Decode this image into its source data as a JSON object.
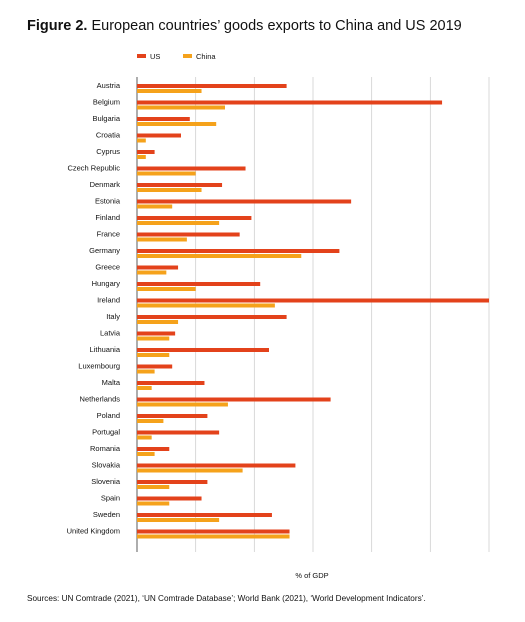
{
  "figure": {
    "label": "Figure 2.",
    "title": "European countries’ goods exports to China and US 2019",
    "source": "Sources: UN Comtrade (2021), ‘UN Comtrade Database’; World Bank (2021), ‘World Development Indicators’."
  },
  "chart_data": {
    "type": "bar",
    "orientation": "horizontal",
    "xlabel": "% of GDP",
    "xlim": [
      0,
      12
    ],
    "grid": true,
    "tick_labels_shown": false,
    "legend_position": "top-left",
    "categories": [
      "Austria",
      "Belgium",
      "Bulgaria",
      "Croatia",
      "Cyprus",
      "Czech Republic",
      "Denmark",
      "Estonia",
      "Finland",
      "France",
      "Germany",
      "Greece",
      "Hungary",
      "Ireland",
      "Italy",
      "Latvia",
      "Lithuania",
      "Luxembourg",
      "Malta",
      "Netherlands",
      "Poland",
      "Portugal",
      "Romania",
      "Slovakia",
      "Slovenia",
      "Spain",
      "Sweden",
      "United Kingdom"
    ],
    "series": [
      {
        "name": "US",
        "color": "#e3421b",
        "values": [
          5.1,
          10.4,
          1.8,
          1.5,
          0.6,
          3.7,
          2.9,
          7.3,
          3.9,
          3.5,
          6.9,
          1.4,
          4.2,
          12.0,
          5.1,
          1.3,
          4.5,
          1.2,
          2.3,
          6.6,
          2.4,
          2.8,
          1.1,
          5.4,
          2.4,
          2.2,
          4.6,
          5.2
        ]
      },
      {
        "name": "China",
        "color": "#f5a21b",
        "values": [
          2.2,
          3.0,
          2.7,
          0.3,
          0.3,
          2.0,
          2.2,
          1.2,
          2.8,
          1.7,
          5.6,
          1.0,
          2.0,
          4.7,
          1.4,
          1.1,
          1.1,
          0.6,
          0.5,
          3.1,
          0.9,
          0.5,
          0.6,
          3.6,
          1.1,
          1.1,
          2.8,
          5.2
        ]
      }
    ]
  },
  "colors": {
    "us": "#e3421b",
    "china": "#f5a21b",
    "grid": "#cfcfcf",
    "axis": "#333333"
  }
}
